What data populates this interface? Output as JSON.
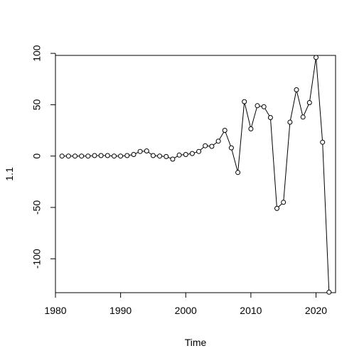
{
  "chart_data": {
    "type": "line",
    "title": "",
    "xlabel": "Time",
    "ylabel": "1.1",
    "xlim": [
      1980,
      2023
    ],
    "ylim": [
      -133,
      98
    ],
    "x_ticks": [
      1980,
      1990,
      2000,
      2010,
      2020
    ],
    "y_ticks": [
      -100,
      -50,
      0,
      50,
      100
    ],
    "grid": false,
    "series": [
      {
        "x": [
          1981,
          1982,
          1983,
          1984,
          1985,
          1986,
          1987,
          1988,
          1989,
          1990,
          1991,
          1992,
          1993,
          1994,
          1995,
          1996,
          1997,
          1998,
          1999,
          2000,
          2001,
          2002,
          2003,
          2004,
          2005,
          2006,
          2007,
          2008,
          2009,
          2010,
          2011,
          2012,
          2013,
          2014,
          2015,
          2016,
          2017,
          2018,
          2019,
          2020,
          2021,
          2022
        ],
        "values": [
          0,
          0,
          0,
          0,
          0,
          0.5,
          0.5,
          0.5,
          0,
          0,
          0.5,
          1.5,
          4.5,
          5,
          0.5,
          0,
          -0.5,
          -3,
          1,
          1.5,
          2.5,
          4.5,
          10,
          9.5,
          14.5,
          25,
          8,
          -16,
          53,
          26.5,
          49,
          48,
          37.5,
          -51,
          -45,
          33,
          64.5,
          38,
          52,
          96,
          13.5,
          -132.5
        ]
      }
    ]
  }
}
